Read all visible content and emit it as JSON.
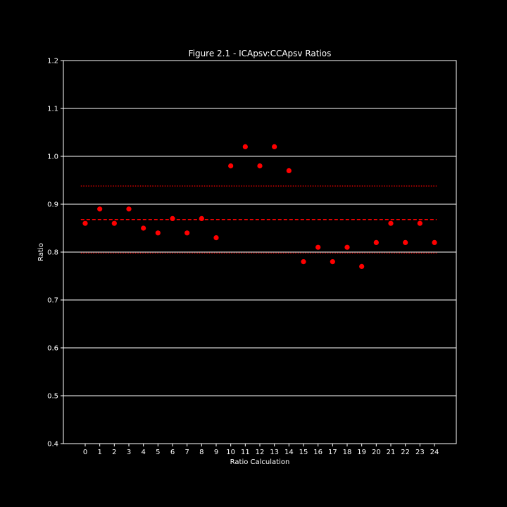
{
  "chart_data": {
    "type": "scatter",
    "title": "Figure 2.1 - ICApsv:CCApsv Ratios",
    "xlabel": "Ratio Calculation",
    "ylabel": "Ratio",
    "xlim": [
      -1.5,
      25.5
    ],
    "ylim": [
      0.4,
      1.2
    ],
    "xticks": [
      0,
      1,
      2,
      3,
      4,
      5,
      6,
      7,
      8,
      9,
      10,
      11,
      12,
      13,
      14,
      15,
      16,
      17,
      18,
      19,
      20,
      21,
      22,
      23,
      24
    ],
    "yticks": [
      0.4,
      0.5,
      0.6,
      0.7,
      0.8,
      0.9,
      1.0,
      1.1,
      1.2
    ],
    "ytick_labels": [
      "0.4",
      "0.5",
      "0.6",
      "0.7",
      "0.8",
      "0.9",
      "1.0",
      "1.1",
      "1.2"
    ],
    "grid": "horizontal",
    "x": [
      0,
      1,
      2,
      3,
      4,
      5,
      6,
      7,
      8,
      9,
      10,
      11,
      12,
      13,
      14,
      15,
      16,
      17,
      18,
      19,
      20,
      21,
      22,
      23,
      24
    ],
    "y": [
      0.86,
      0.89,
      0.86,
      0.89,
      0.85,
      0.84,
      0.87,
      0.84,
      0.87,
      0.83,
      0.98,
      1.02,
      0.98,
      1.02,
      0.97,
      0.78,
      0.81,
      0.78,
      0.81,
      0.77,
      0.82,
      0.86,
      0.82,
      0.86,
      0.82
    ],
    "reference_lines": [
      {
        "y": 0.868,
        "style": "dashed"
      },
      {
        "y": 0.938,
        "style": "dotted"
      },
      {
        "y": 0.798,
        "style": "dotted"
      }
    ],
    "colors": {
      "background": "#000000",
      "axes": "#ffffff",
      "points": "#ff0000",
      "lines": "#ff0000",
      "grid": "#ffffff"
    }
  }
}
